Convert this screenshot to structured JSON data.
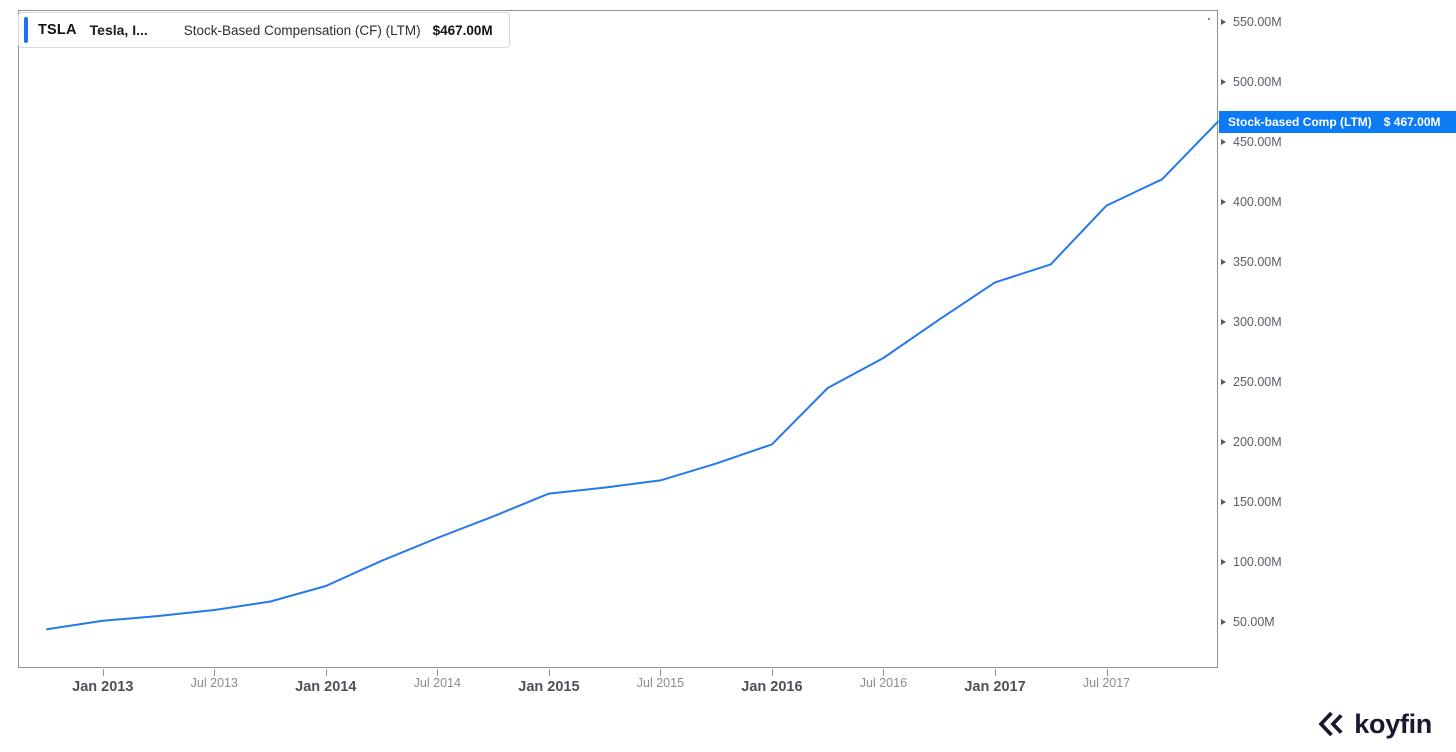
{
  "legend": {
    "ticker": "TSLA",
    "company": "Tesla, I...",
    "metric": "Stock-Based Compensation (CF) (LTM)",
    "value": "$467.00M",
    "accent_color": "#1a73f0"
  },
  "badge": {
    "label": "Stock-based Comp (LTM)",
    "value": "$ 467.00M",
    "bg_color": "#0c7bf4",
    "text_color": "#ffffff"
  },
  "logo": {
    "text": "koyfin",
    "color": "#171a2e"
  },
  "chart_data": {
    "type": "line",
    "title": "TSLA Tesla — Stock-Based Compensation (CF) (LTM)",
    "unit": "USD, millions",
    "grid": false,
    "legend_position": "top-left",
    "line_color": "#2479ec",
    "ylim": [
      10,
      560
    ],
    "series": [
      {
        "name": "Stock-based Comp (LTM)",
        "color": "#2479ec",
        "x": [
          "Sep 2012",
          "Dec 2012",
          "Mar 2013",
          "Jun 2013",
          "Sep 2013",
          "Dec 2013",
          "Mar 2014",
          "Jun 2014",
          "Sep 2014",
          "Dec 2014",
          "Mar 2015",
          "Jun 2015",
          "Sep 2015",
          "Dec 2015",
          "Mar 2016",
          "Jun 2016",
          "Sep 2016",
          "Dec 2016",
          "Mar 2017",
          "Jun 2017",
          "Sep 2017",
          "Dec 2017"
        ],
        "values": [
          44,
          51,
          55,
          60,
          67,
          80,
          101,
          120,
          138,
          157,
          162,
          168,
          182,
          198,
          245,
          270,
          302,
          333,
          348,
          397,
          419,
          467
        ]
      }
    ],
    "last_value_label": "$ 467.00M",
    "x_ticks": [
      {
        "label": "Jan 2013",
        "major": true
      },
      {
        "label": "Jul 2013",
        "major": false
      },
      {
        "label": "Jan 2014",
        "major": true
      },
      {
        "label": "Jul 2014",
        "major": false
      },
      {
        "label": "Jan 2015",
        "major": true
      },
      {
        "label": "Jul 2015",
        "major": false
      },
      {
        "label": "Jan 2016",
        "major": true
      },
      {
        "label": "Jul 2016",
        "major": false
      },
      {
        "label": "Jan 2017",
        "major": true
      },
      {
        "label": "Jul 2017",
        "major": false
      }
    ],
    "y_ticks": {
      "values": [
        550,
        500,
        450,
        400,
        350,
        300,
        250,
        200,
        150,
        100,
        50
      ],
      "labels": [
        "550.00M",
        "500.00M",
        "450.00M",
        "400.00M",
        "350.00M",
        "300.00M",
        "250.00M",
        "200.00M",
        "150.00M",
        "100.00M",
        "50.00M"
      ]
    }
  }
}
